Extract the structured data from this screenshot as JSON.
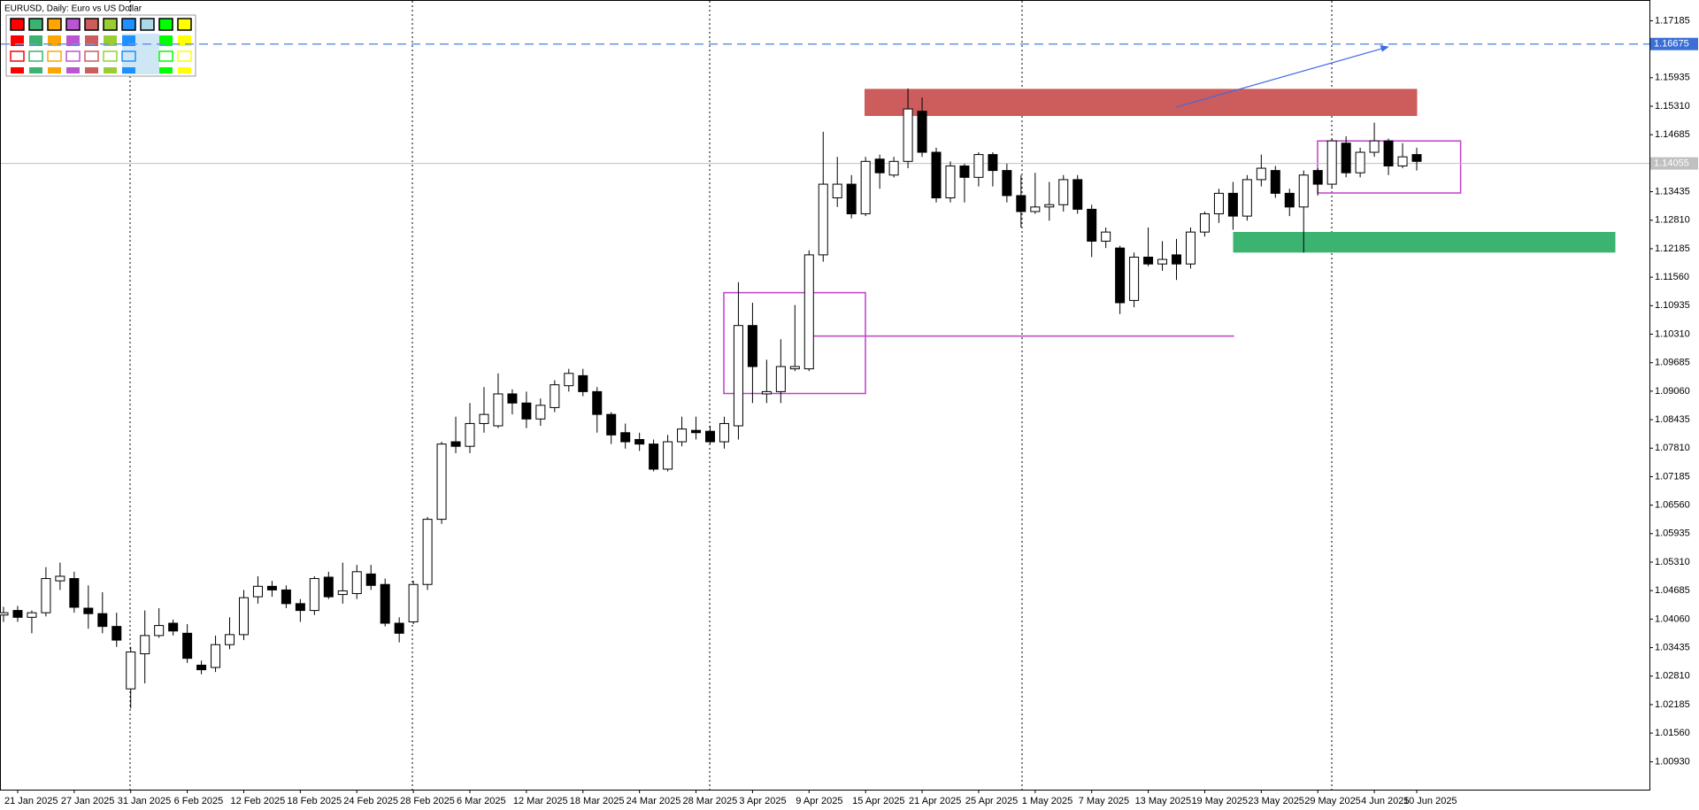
{
  "chart_data": {
    "type": "candlestick",
    "title": "EURUSD, Daily:  Euro vs US Dollar",
    "categories": [
      null,
      "21 Jan 2025",
      null,
      null,
      null,
      "27 Jan 2025",
      null,
      null,
      null,
      "31 Jan 2025",
      null,
      null,
      null,
      "6 Feb 2025",
      null,
      null,
      null,
      "12 Feb 2025",
      null,
      null,
      null,
      "18 Feb 2025",
      null,
      null,
      null,
      "24 Feb 2025",
      null,
      null,
      null,
      "28 Feb 2025",
      null,
      null,
      null,
      "6 Mar 2025",
      null,
      null,
      null,
      "12 Mar 2025",
      null,
      null,
      null,
      "18 Mar 2025",
      null,
      null,
      null,
      "24 Mar 2025",
      null,
      null,
      null,
      "28 Mar 2025",
      null,
      null,
      null,
      "3 Apr 2025",
      null,
      null,
      null,
      "9 Apr 2025",
      null,
      null,
      null,
      "15 Apr 2025",
      null,
      null,
      null,
      "21 Apr 2025",
      null,
      null,
      null,
      "25 Apr 2025",
      null,
      null,
      null,
      "1 May 2025",
      null,
      null,
      null,
      "7 May 2025",
      null,
      null,
      null,
      "13 May 2025",
      null,
      null,
      null,
      "19 May 2025",
      null,
      null,
      null,
      "23 May 2025",
      null,
      null,
      null,
      "29 May 2025",
      null,
      null,
      null,
      "4 Jun 2025",
      null,
      null,
      "10 Jun 2025"
    ],
    "open": [
      1.0415,
      1.0425,
      1.041,
      1.042,
      1.049,
      1.0495,
      1.043,
      1.0418,
      1.039,
      1.0253,
      1.033,
      1.037,
      1.0397,
      1.0375,
      1.0305,
      1.03,
      1.035,
      1.0372,
      1.0455,
      1.0478,
      1.047,
      1.044,
      1.0425,
      1.0498,
      1.046,
      1.0462,
      1.0505,
      1.0482,
      1.0397,
      1.04,
      1.0482,
      1.0625,
      1.0795,
      1.0785,
      1.0835,
      1.083,
      1.09,
      1.088,
      1.0845,
      1.087,
      1.0918,
      1.094,
      1.0905,
      1.0855,
      1.0815,
      1.08,
      1.079,
      1.0735,
      1.0795,
      1.082,
      1.0818,
      1.0795,
      1.083,
      1.105,
      1.09,
      1.0905,
      1.0955,
      1.0955,
      1.1205,
      1.133,
      1.136,
      1.1295,
      1.1415,
      1.138,
      1.141,
      1.152,
      1.143,
      1.133,
      1.14,
      1.1375,
      1.1425,
      1.139,
      1.1335,
      1.13,
      1.131,
      1.1315,
      1.137,
      1.1305,
      1.1235,
      1.122,
      1.1105,
      1.12,
      1.1185,
      1.1205,
      1.1185,
      1.1255,
      1.1295,
      1.134,
      1.129,
      1.137,
      1.139,
      1.134,
      1.131,
      1.139,
      1.136,
      1.145,
      1.1385,
      1.143,
      1.1455,
      1.14,
      1.1425
    ],
    "high": [
      1.0433,
      1.0435,
      1.0425,
      1.052,
      1.053,
      1.051,
      1.048,
      1.0465,
      1.042,
      1.0345,
      1.0425,
      1.043,
      1.0405,
      1.0395,
      1.0315,
      1.037,
      1.041,
      1.047,
      1.05,
      1.049,
      1.048,
      1.045,
      1.05,
      1.051,
      1.053,
      1.0525,
      1.0525,
      1.0495,
      1.041,
      1.049,
      1.063,
      1.0795,
      1.085,
      1.088,
      1.0915,
      1.0945,
      1.091,
      1.0905,
      1.089,
      1.093,
      1.0955,
      1.0955,
      1.0915,
      1.086,
      1.0835,
      1.0815,
      1.08,
      1.081,
      1.085,
      1.085,
      1.083,
      1.085,
      1.1145,
      1.11,
      1.0975,
      1.102,
      1.1095,
      1.1215,
      1.1475,
      1.142,
      1.138,
      1.142,
      1.1425,
      1.142,
      1.157,
      1.155,
      1.144,
      1.141,
      1.1405,
      1.143,
      1.143,
      1.1405,
      1.138,
      1.1385,
      1.1365,
      1.138,
      1.138,
      1.1315,
      1.1265,
      1.1225,
      1.121,
      1.1265,
      1.1235,
      1.124,
      1.1265,
      1.13,
      1.135,
      1.1365,
      1.138,
      1.1425,
      1.14,
      1.135,
      1.139,
      1.1395,
      1.146,
      1.1465,
      1.144,
      1.1495,
      1.146,
      1.145,
      1.144
    ],
    "low": [
      1.04,
      1.04,
      1.0375,
      1.0412,
      1.047,
      1.042,
      1.0385,
      1.0375,
      1.0345,
      1.021,
      1.0265,
      1.0365,
      1.037,
      1.031,
      1.0285,
      1.029,
      1.034,
      1.036,
      1.044,
      1.0455,
      1.043,
      1.04,
      1.0415,
      1.045,
      1.044,
      1.045,
      1.047,
      1.039,
      1.0355,
      1.0395,
      1.047,
      1.0615,
      1.077,
      1.077,
      1.0815,
      1.0825,
      1.0855,
      1.0825,
      1.083,
      1.086,
      1.0905,
      1.0895,
      1.0815,
      1.079,
      1.078,
      1.0775,
      1.073,
      1.073,
      1.0785,
      1.08,
      1.079,
      1.078,
      1.08,
      1.088,
      1.088,
      1.088,
      1.095,
      1.095,
      1.119,
      1.131,
      1.1285,
      1.129,
      1.135,
      1.1375,
      1.1395,
      1.142,
      1.132,
      1.132,
      1.132,
      1.1355,
      1.1355,
      1.132,
      1.1265,
      1.1295,
      1.128,
      1.13,
      1.1295,
      1.12,
      1.122,
      1.1075,
      1.109,
      1.118,
      1.117,
      1.115,
      1.1175,
      1.1245,
      1.1275,
      1.126,
      1.128,
      1.1355,
      1.133,
      1.129,
      1.121,
      1.1335,
      1.135,
      1.1375,
      1.1375,
      1.142,
      1.138,
      1.1395,
      1.139
    ],
    "close": [
      1.042,
      1.041,
      1.042,
      1.0495,
      1.05,
      1.0432,
      1.0418,
      1.039,
      1.036,
      1.0334,
      1.037,
      1.0392,
      1.038,
      1.032,
      1.0295,
      1.035,
      1.0372,
      1.0453,
      1.0478,
      1.047,
      1.044,
      1.0425,
      1.0495,
      1.0455,
      1.0468,
      1.051,
      1.048,
      1.0397,
      1.0375,
      1.0482,
      1.0625,
      1.079,
      1.0785,
      1.0835,
      1.0855,
      1.09,
      1.088,
      1.0845,
      1.0875,
      1.092,
      1.0945,
      1.0905,
      1.0855,
      1.081,
      1.0795,
      1.079,
      1.0735,
      1.0795,
      1.0823,
      1.0815,
      1.0795,
      1.0835,
      1.105,
      1.096,
      1.0905,
      1.096,
      1.096,
      1.1205,
      1.136,
      1.136,
      1.1295,
      1.141,
      1.1385,
      1.141,
      1.1525,
      1.143,
      1.133,
      1.14,
      1.1375,
      1.1425,
      1.139,
      1.1335,
      1.13,
      1.131,
      1.1315,
      1.137,
      1.1305,
      1.1235,
      1.1255,
      1.11,
      1.12,
      1.1185,
      1.1195,
      1.1185,
      1.1255,
      1.1295,
      1.134,
      1.129,
      1.137,
      1.1395,
      1.134,
      1.131,
      1.138,
      1.136,
      1.1455,
      1.1385,
      1.143,
      1.1455,
      1.14,
      1.142,
      1.141
    ],
    "up_color": "#ffffff",
    "down_color": "#000000",
    "ylim": [
      1.0032,
      1.1764
    ],
    "yticks": [
      1.17185,
      1.15935,
      {
        "value": 1.1531,
        "label": "1.15310"
      },
      1.14685,
      1.13435,
      {
        "value": 1.1281,
        "label": "1.12810"
      },
      1.12185,
      {
        "value": 1.1156,
        "label": "1.11560"
      },
      1.10935,
      {
        "value": 1.1031,
        "label": "1.10310"
      },
      1.09685,
      {
        "value": 1.0906,
        "label": "1.09060"
      },
      1.08435,
      {
        "value": 1.0781,
        "label": "1.07810"
      },
      1.07185,
      {
        "value": 1.0656,
        "label": "1.06560"
      },
      1.05935,
      {
        "value": 1.0531,
        "label": "1.05310"
      },
      1.04685,
      {
        "value": 1.0406,
        "label": "1.04060"
      },
      1.03435,
      {
        "value": 1.0281,
        "label": "1.02810"
      },
      1.02185,
      {
        "value": 1.0156,
        "label": "1.01560"
      },
      {
        "value": 1.0093,
        "label": "1.00930"
      }
    ],
    "price_line": 1.16675,
    "current_price": 1.14055,
    "grid": false
  }
}
